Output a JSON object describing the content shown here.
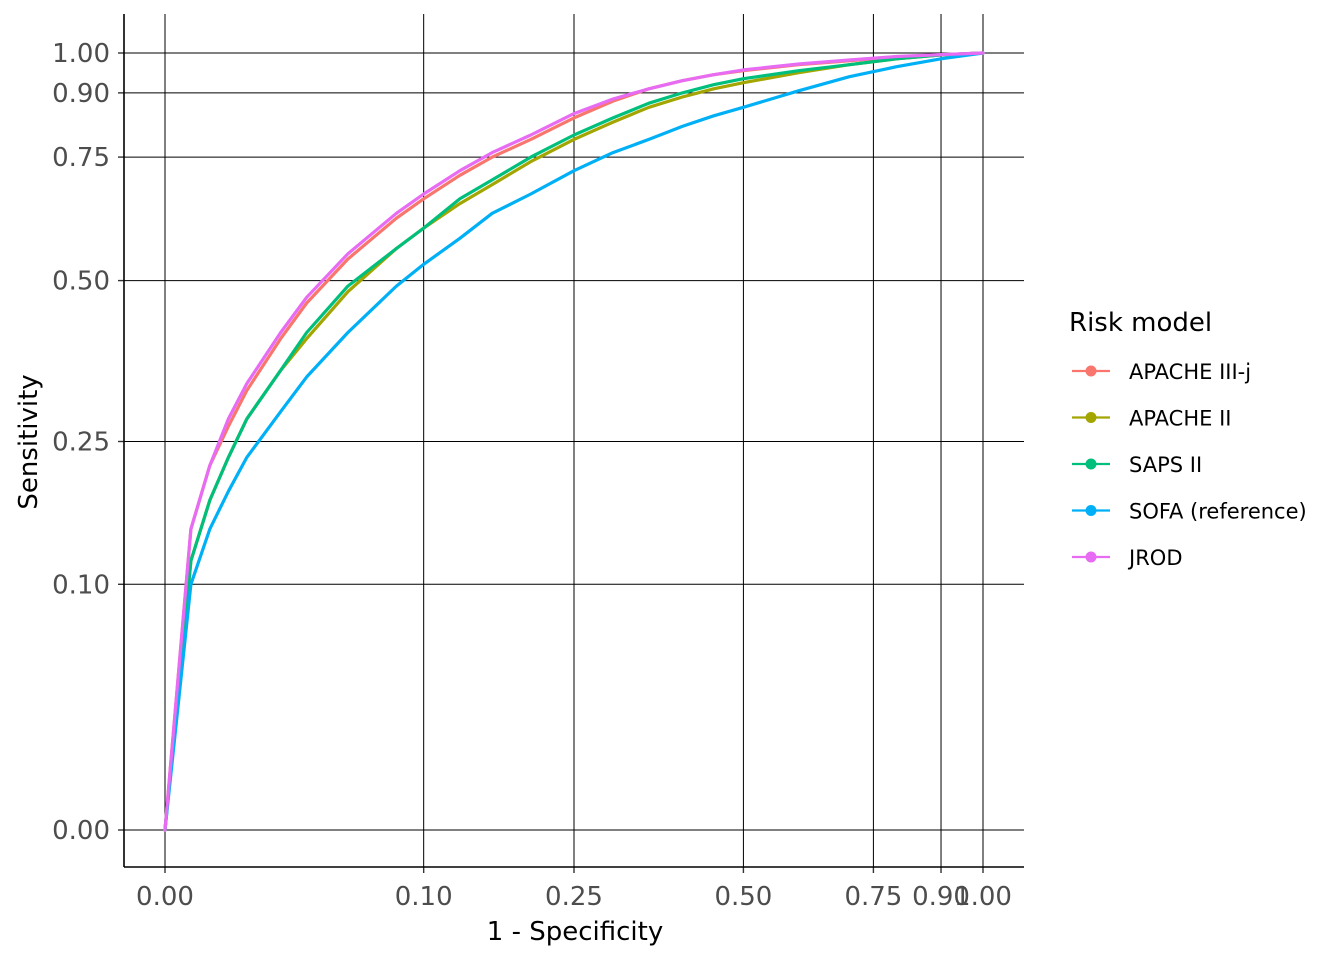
{
  "chart_data": {
    "type": "line",
    "title": "",
    "xlabel": "1 - Specificity",
    "ylabel": "Sensitivity",
    "xlim": [
      0,
      1
    ],
    "ylim": [
      0,
      1
    ],
    "x_scale": "sqrt",
    "y_scale": "sqrt",
    "x_ticks": [
      0.0,
      0.1,
      0.25,
      0.5,
      0.75,
      0.9,
      1.0
    ],
    "x_tick_labels": [
      "0.00",
      "0.10",
      "0.25",
      "0.50",
      "0.75",
      "0.90",
      "1.00"
    ],
    "y_ticks": [
      0.0,
      0.1,
      0.25,
      0.5,
      0.75,
      0.9,
      1.0
    ],
    "y_tick_labels": [
      "0.00",
      "0.10",
      "0.25",
      "0.50",
      "0.75",
      "0.90",
      "1.00"
    ],
    "grid": true,
    "legend": {
      "title": "Risk model",
      "position": "right"
    },
    "series": [
      {
        "name": "APACHE III-j",
        "color": "#F8766D",
        "x": [
          0,
          0.001,
          0.003,
          0.006,
          0.01,
          0.02,
          0.03,
          0.05,
          0.08,
          0.1,
          0.13,
          0.16,
          0.2,
          0.25,
          0.3,
          0.35,
          0.4,
          0.45,
          0.5,
          0.6,
          0.7,
          0.8,
          0.9,
          1.0
        ],
        "y": [
          0,
          0.15,
          0.22,
          0.27,
          0.32,
          0.4,
          0.46,
          0.54,
          0.62,
          0.66,
          0.71,
          0.75,
          0.79,
          0.84,
          0.88,
          0.91,
          0.93,
          0.945,
          0.955,
          0.97,
          0.98,
          0.99,
          0.995,
          1.0
        ]
      },
      {
        "name": "APACHE II",
        "color": "#A3A500",
        "x": [
          0,
          0.001,
          0.003,
          0.006,
          0.01,
          0.02,
          0.03,
          0.05,
          0.08,
          0.1,
          0.13,
          0.16,
          0.2,
          0.25,
          0.3,
          0.35,
          0.4,
          0.45,
          0.5,
          0.6,
          0.7,
          0.8,
          0.9,
          1.0
        ],
        "y": [
          0,
          0.12,
          0.18,
          0.23,
          0.28,
          0.35,
          0.4,
          0.48,
          0.56,
          0.6,
          0.65,
          0.69,
          0.74,
          0.79,
          0.83,
          0.865,
          0.89,
          0.91,
          0.925,
          0.95,
          0.97,
          0.985,
          0.995,
          1.0
        ]
      },
      {
        "name": "SAPS II",
        "color": "#00BF7D",
        "x": [
          0,
          0.001,
          0.003,
          0.006,
          0.01,
          0.02,
          0.03,
          0.05,
          0.08,
          0.1,
          0.13,
          0.16,
          0.2,
          0.25,
          0.3,
          0.35,
          0.4,
          0.45,
          0.5,
          0.6,
          0.7,
          0.8,
          0.9,
          1.0
        ],
        "y": [
          0,
          0.12,
          0.18,
          0.23,
          0.28,
          0.35,
          0.41,
          0.49,
          0.56,
          0.6,
          0.66,
          0.7,
          0.75,
          0.8,
          0.84,
          0.875,
          0.9,
          0.92,
          0.935,
          0.955,
          0.97,
          0.985,
          0.995,
          1.0
        ]
      },
      {
        "name": "SOFA (reference)",
        "color": "#00B0F6",
        "x": [
          0,
          0.001,
          0.003,
          0.006,
          0.01,
          0.02,
          0.03,
          0.05,
          0.08,
          0.1,
          0.13,
          0.16,
          0.2,
          0.25,
          0.3,
          0.35,
          0.4,
          0.45,
          0.5,
          0.6,
          0.7,
          0.8,
          0.9,
          1.0
        ],
        "y": [
          0,
          0.1,
          0.15,
          0.19,
          0.23,
          0.29,
          0.34,
          0.41,
          0.49,
          0.53,
          0.58,
          0.63,
          0.67,
          0.72,
          0.76,
          0.79,
          0.82,
          0.845,
          0.865,
          0.905,
          0.94,
          0.965,
          0.985,
          1.0
        ]
      },
      {
        "name": "JROD",
        "color": "#E76BF3",
        "x": [
          0,
          0.001,
          0.003,
          0.006,
          0.01,
          0.02,
          0.03,
          0.05,
          0.08,
          0.1,
          0.13,
          0.16,
          0.2,
          0.25,
          0.3,
          0.35,
          0.4,
          0.45,
          0.5,
          0.6,
          0.7,
          0.8,
          0.9,
          1.0
        ],
        "y": [
          0,
          0.15,
          0.22,
          0.28,
          0.33,
          0.41,
          0.47,
          0.55,
          0.63,
          0.67,
          0.72,
          0.76,
          0.8,
          0.85,
          0.885,
          0.91,
          0.93,
          0.945,
          0.957,
          0.972,
          0.982,
          0.991,
          0.996,
          1.0
        ]
      }
    ]
  }
}
